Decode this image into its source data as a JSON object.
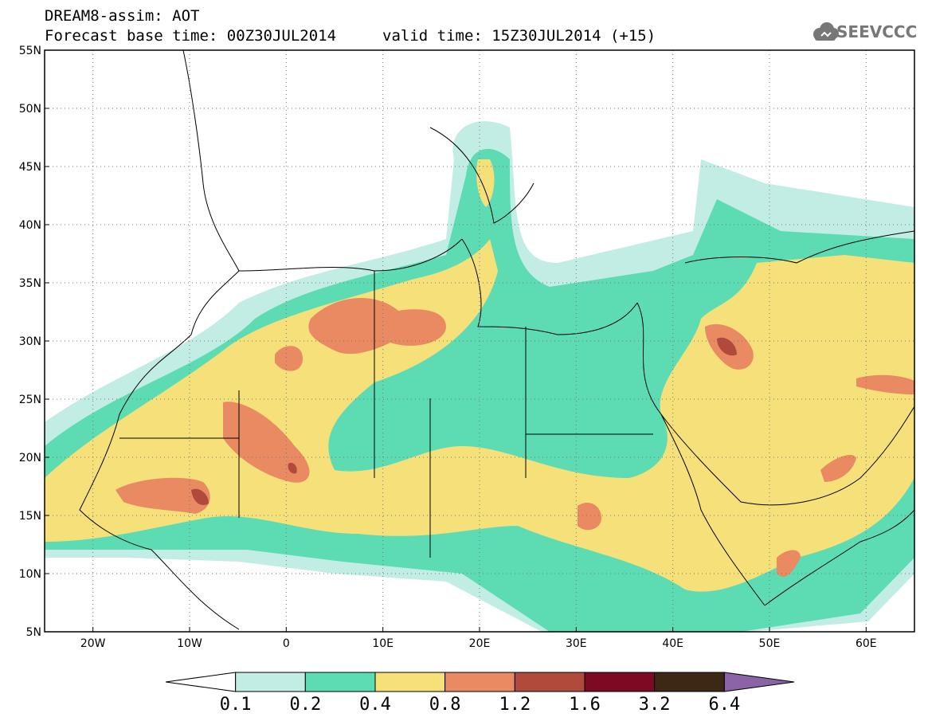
{
  "header": {
    "title_line1": "DREAM8-assim: AOT",
    "title_line2": "Forecast base time: 00Z30JUL2014",
    "valid_time": "valid time: 15Z30JUL2014 (+15)",
    "logo_text": "SEEVCCC",
    "logo_icon": "cloud-icon"
  },
  "map": {
    "variable": "AOT",
    "lat_range": [
      5,
      55
    ],
    "lon_range": [
      -25,
      65
    ],
    "lat_labels": [
      "55N",
      "50N",
      "45N",
      "40N",
      "35N",
      "30N",
      "25N",
      "20N",
      "15N",
      "10N",
      "5N"
    ],
    "lon_labels": [
      "20W",
      "10W",
      "0",
      "10E",
      "20E",
      "30E",
      "40E",
      "50E",
      "60E"
    ],
    "grid": "dotted",
    "background": "#ffffff",
    "border_color": "#000000"
  },
  "legend": {
    "labels": [
      "0.1",
      "0.2",
      "0.4",
      "0.8",
      "1.2",
      "1.6",
      "3.2",
      "6.4"
    ],
    "colors": [
      "#ffffff",
      "#c2ede4",
      "#5ddcb4",
      "#f5e07a",
      "#e98a62",
      "#b24a3c",
      "#7b0a22",
      "#3d2815",
      "#8a64a6"
    ]
  }
}
